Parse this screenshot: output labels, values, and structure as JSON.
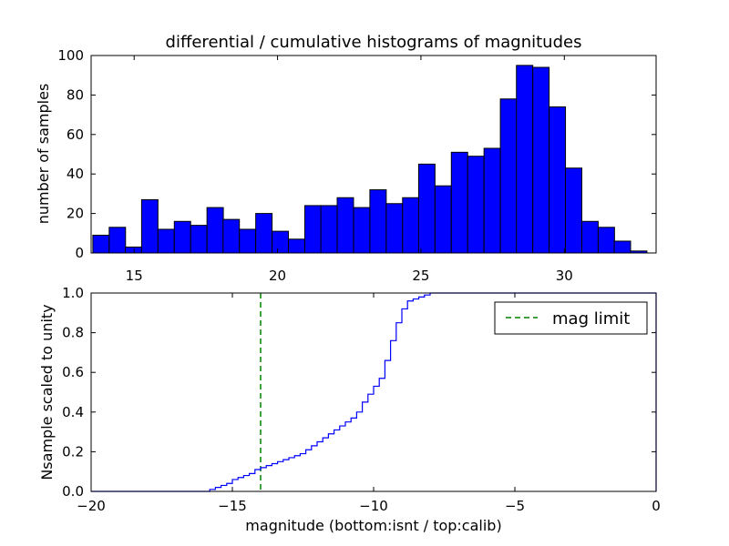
{
  "figure": {
    "background": "#ffffff",
    "bar_color": "#0000ff",
    "line_color": "#0000ff",
    "marker_color": "#008000"
  },
  "chart_data": [
    {
      "type": "bar",
      "title": "differential / cumulative histograms of magnitudes",
      "xlabel": "",
      "ylabel": "number of samples",
      "xlim": [
        13.5,
        33.2
      ],
      "ylim": [
        0,
        100
      ],
      "xticks": [
        15,
        20,
        25,
        30
      ],
      "yticks": [
        0,
        20,
        40,
        60,
        80,
        100
      ],
      "bin_width": 0.57,
      "bins_start": [
        13.56,
        14.13,
        14.69,
        15.26,
        15.83,
        16.4,
        16.97,
        17.54,
        18.1,
        18.67,
        19.24,
        19.81,
        20.38,
        20.95,
        21.51,
        22.08,
        22.65,
        23.22,
        23.79,
        24.36,
        24.92,
        25.49,
        26.06,
        26.63,
        27.2,
        27.77,
        28.33,
        28.9,
        29.47,
        30.04,
        30.61,
        31.18,
        31.74,
        32.31
      ],
      "values": [
        9,
        13,
        3,
        27,
        12,
        16,
        14,
        23,
        17,
        12,
        20,
        11,
        7,
        24,
        24,
        28,
        23,
        32,
        25,
        28,
        45,
        34,
        51,
        49,
        53,
        78,
        95,
        94,
        74,
        43,
        16,
        13,
        6,
        1
      ]
    },
    {
      "type": "line",
      "drawstyle": "steps",
      "ylabel": "Nsample scaled to unity",
      "xlabel": "magnitude (bottom:isnt / top:calib)",
      "xlim": [
        -20,
        0
      ],
      "ylim": [
        0,
        1.0
      ],
      "xticks": [
        -20,
        -15,
        -10,
        -5,
        0
      ],
      "yticks": [
        0.0,
        0.2,
        0.4,
        0.6,
        0.8,
        1.0
      ],
      "x": [
        -20.0,
        -15.8,
        -15.6,
        -15.4,
        -15.2,
        -15.0,
        -14.8,
        -14.6,
        -14.4,
        -14.2,
        -14.0,
        -13.8,
        -13.6,
        -13.4,
        -13.2,
        -13.0,
        -12.8,
        -12.6,
        -12.4,
        -12.2,
        -12.0,
        -11.8,
        -11.6,
        -11.4,
        -11.2,
        -11.0,
        -10.8,
        -10.6,
        -10.4,
        -10.2,
        -10.0,
        -9.8,
        -9.6,
        -9.4,
        -9.2,
        -9.0,
        -8.8,
        -8.6,
        -8.4,
        -8.2,
        -8.0,
        -7.8,
        0.0
      ],
      "y": [
        0.0,
        0.01,
        0.02,
        0.03,
        0.04,
        0.06,
        0.07,
        0.08,
        0.09,
        0.11,
        0.12,
        0.13,
        0.14,
        0.15,
        0.16,
        0.17,
        0.18,
        0.19,
        0.21,
        0.23,
        0.25,
        0.27,
        0.29,
        0.31,
        0.33,
        0.35,
        0.37,
        0.4,
        0.45,
        0.49,
        0.53,
        0.57,
        0.66,
        0.76,
        0.85,
        0.92,
        0.96,
        0.97,
        0.98,
        0.99,
        1.0,
        1.0,
        1.0
      ],
      "mag_limit": -14.0,
      "legend": {
        "label": "mag limit",
        "placement": "top-right"
      }
    }
  ]
}
